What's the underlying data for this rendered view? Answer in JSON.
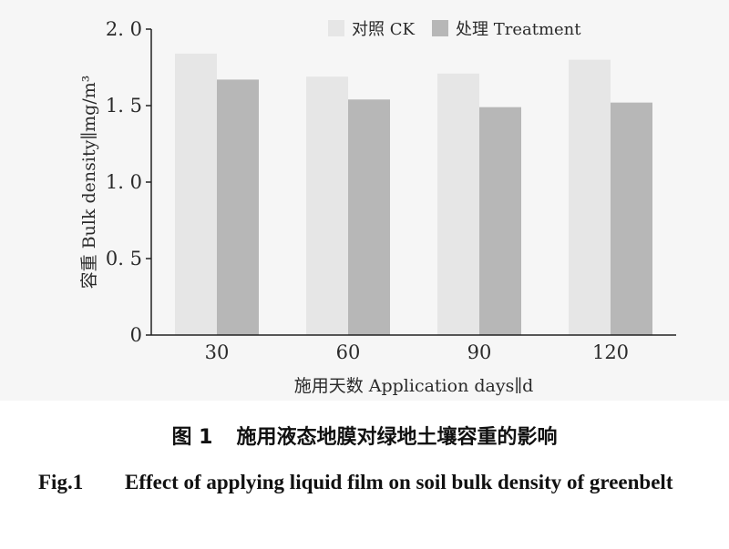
{
  "chart_data": {
    "type": "bar",
    "categories": [
      "30",
      "60",
      "90",
      "120"
    ],
    "series": [
      {
        "name": "对照 CK",
        "values": [
          1.84,
          1.69,
          1.71,
          1.8
        ],
        "color": "#e6e6e6"
      },
      {
        "name": "处理 Treatment",
        "values": [
          1.67,
          1.54,
          1.49,
          1.52
        ],
        "color": "#b7b7b7"
      }
    ],
    "xlabel": "施用天数 Application days∥d",
    "ylabel": "容重 Bulk density∥mg/m³",
    "ylim": [
      0,
      2.0
    ],
    "yticks": [
      {
        "value": 0,
        "label": "0"
      },
      {
        "value": 0.5,
        "label": "0. 5"
      },
      {
        "value": 1.0,
        "label": "1. 0"
      },
      {
        "value": 1.5,
        "label": "1. 5"
      },
      {
        "value": 2.0,
        "label": "2. 0"
      }
    ],
    "legend_position": "top-right",
    "grid": false
  },
  "caption": {
    "cn_number": "图 1",
    "cn_title": "施用液态地膜对绿地土壤容重的影响",
    "en_number": "Fig.1",
    "en_title": "Effect of applying liquid film on soil bulk density of greenbelt"
  }
}
